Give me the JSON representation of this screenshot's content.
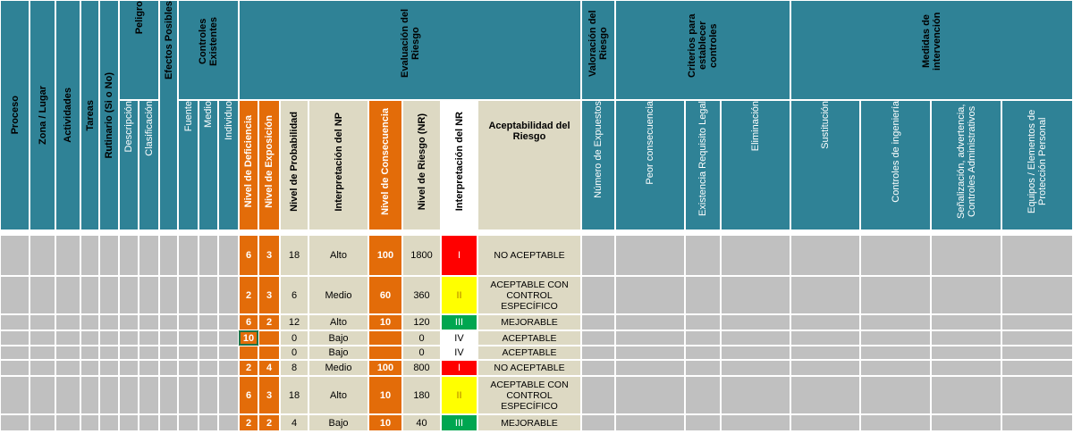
{
  "colors": {
    "teal": "#2f8296",
    "beige": "#ddd9c3",
    "orange": "#e36c09",
    "grey": "#c0c0c0",
    "red": "#ff0000",
    "yellow": "#ffff00",
    "green": "#00a650",
    "white": "#ffffff",
    "selection": "#217346"
  },
  "headers": {
    "proceso": "Proceso",
    "zona": "Zona / Lugar",
    "actividades": "Actividades",
    "tareas": "Tareas",
    "rutinario": "Rutinario (Si o No)",
    "peligro": "Peligro",
    "descripcion": "Descripción",
    "clasificacion": "Clasificación",
    "efectos": "Efectos Posibles",
    "controles": "Controles Existentes",
    "fuente": "Fuente",
    "medio": "Medio",
    "individuo": "Individuo",
    "evaluacion": "Evaluación del Riesgo",
    "nd": "Nivel de Deficiencia",
    "ne": "Nivel de Exposición",
    "np": "Nivel de Probabilidad",
    "int_np": "Interpretación del NP",
    "nc": "Nivel de Consecuencia",
    "nr": "Nivel de Riesgo (NR)",
    "int_nr": "Interpretación del NR",
    "valoracion": "Valoración del Riesgo",
    "aceptabilidad": "Aceptabilidad del Riesgo",
    "criterios": "Criterios para establecer controles",
    "expuestos": "Número de Expuestos",
    "peor": "Peor consecuencia",
    "requisito": "Existencia Requisito Legal",
    "medidas": "Medidas de intervención",
    "eliminacion": "Eliminación",
    "sustitucion": "Sustitución",
    "ingenieria": "Controles de ingeniería",
    "senalizacion": "Señalización, advertencia, Controles Administrativos",
    "epp": "Equipos / Elementos de Protección Personal"
  },
  "rows": [
    {
      "nd": "6",
      "ne": "3",
      "np": "18",
      "int_np": "Alto",
      "nc": "100",
      "nr": "1800",
      "int_nr": "I",
      "int_nr_color": "#ff0000",
      "acept": "NO ACEPTABLE"
    },
    {
      "nd": "2",
      "ne": "3",
      "np": "6",
      "int_np": "Medio",
      "nc": "60",
      "nr": "360",
      "int_nr": "II",
      "int_nr_color": "#ffff00",
      "acept": "ACEPTABLE CON CONTROL ESPECÍFICO"
    },
    {
      "nd": "6",
      "ne": "2",
      "np": "12",
      "int_np": "Alto",
      "nc": "10",
      "nr": "120",
      "int_nr": "III",
      "int_nr_color": "#00a650",
      "acept": "MEJORABLE"
    },
    {
      "nd": "10",
      "ne": "",
      "np": "0",
      "int_np": "Bajo",
      "nc": "",
      "nr": "0",
      "int_nr": "IV",
      "int_nr_color": "#ffffff",
      "acept": "ACEPTABLE",
      "selected": true
    },
    {
      "nd": "",
      "ne": "",
      "np": "0",
      "int_np": "Bajo",
      "nc": "",
      "nr": "0",
      "int_nr": "IV",
      "int_nr_color": "#ffffff",
      "acept": "ACEPTABLE"
    },
    {
      "nd": "2",
      "ne": "4",
      "np": "8",
      "int_np": "Medio",
      "nc": "100",
      "nr": "800",
      "int_nr": "I",
      "int_nr_color": "#ff0000",
      "acept": "NO ACEPTABLE"
    },
    {
      "nd": "6",
      "ne": "3",
      "np": "18",
      "int_np": "Alto",
      "nc": "10",
      "nr": "180",
      "int_nr": "II",
      "int_nr_color": "#ffff00",
      "acept": "ACEPTABLE CON CONTROL ESPECÍFICO"
    },
    {
      "nd": "2",
      "ne": "2",
      "np": "4",
      "int_np": "Bajo",
      "nc": "10",
      "nr": "40",
      "int_nr": "III",
      "int_nr_color": "#00a650",
      "acept": "MEJORABLE"
    }
  ]
}
